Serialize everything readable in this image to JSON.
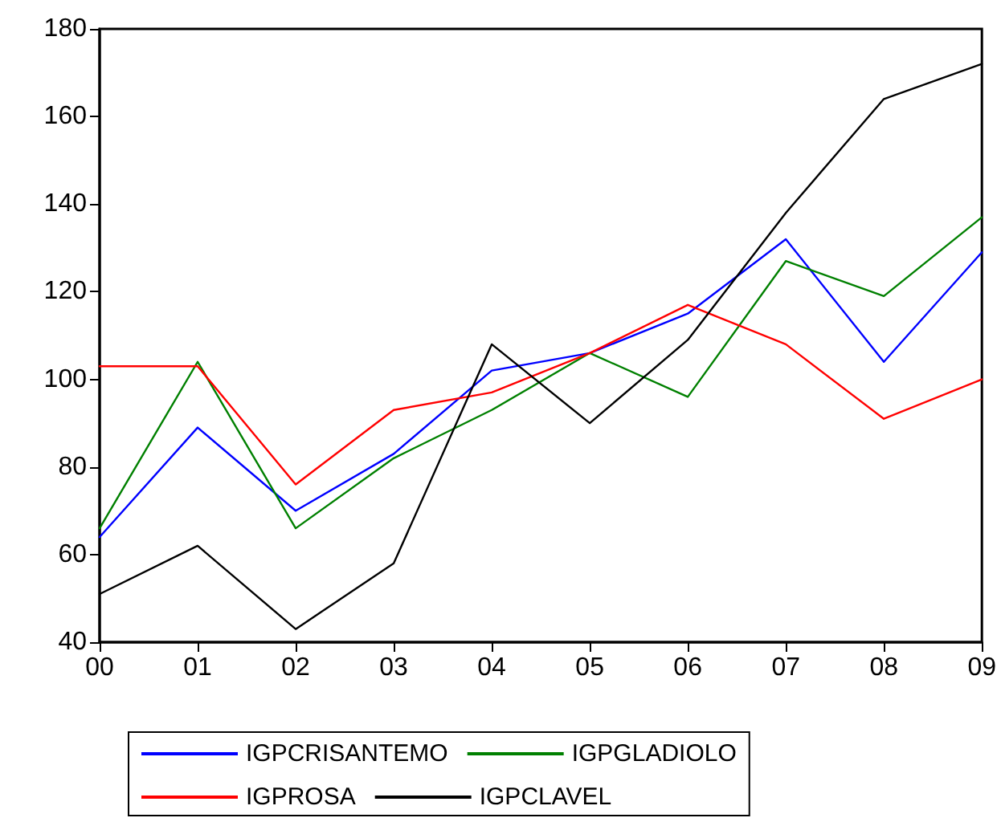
{
  "chart_data": {
    "type": "line",
    "categories": [
      "00",
      "01",
      "02",
      "03",
      "04",
      "05",
      "06",
      "07",
      "08",
      "09"
    ],
    "series": [
      {
        "name": "IGPCRISANTEMO",
        "color": "#0000ff",
        "values": [
          64,
          89,
          70,
          83,
          102,
          106,
          115,
          132,
          104,
          129
        ]
      },
      {
        "name": "IGPGLADIOLO",
        "color": "#008000",
        "values": [
          66,
          104,
          66,
          82,
          93,
          106,
          96,
          127,
          119,
          137
        ]
      },
      {
        "name": "IGPROSA",
        "color": "#ff0000",
        "values": [
          103,
          103,
          76,
          93,
          97,
          106,
          117,
          108,
          91,
          100
        ]
      },
      {
        "name": "IGPCLAVEL",
        "color": "#000000",
        "values": [
          51,
          62,
          43,
          58,
          108,
          90,
          109,
          138,
          164,
          172
        ]
      }
    ],
    "ylim": [
      40,
      180
    ],
    "yticks": [
      40,
      60,
      80,
      100,
      120,
      140,
      160,
      180
    ],
    "grid": false,
    "legend": "bottom",
    "marker": "none",
    "line_style": "solid"
  }
}
